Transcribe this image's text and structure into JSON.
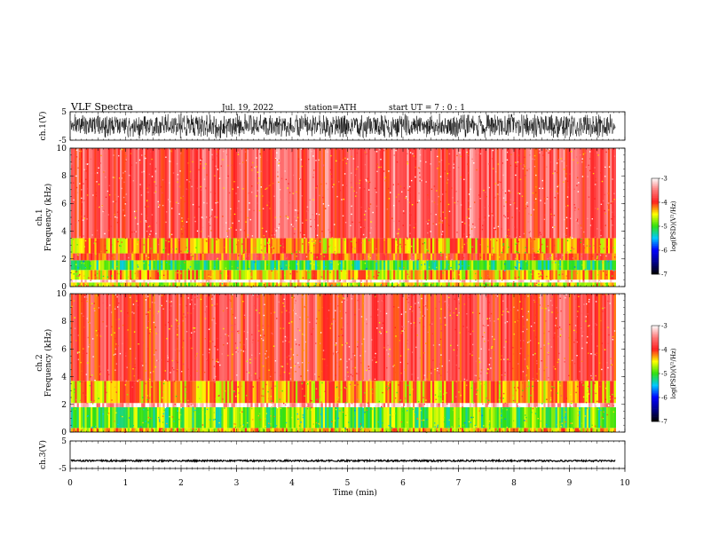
{
  "header": {
    "title": "VLF  Spectra",
    "date": "Jul.  19, 2022",
    "station": "station=ATH",
    "start_ut": "start  UT  =   7 : 0  : 1"
  },
  "chart_data": [
    {
      "type": "line",
      "name": "ch1-waveform",
      "ylabel": "ch.1(V)",
      "ylim": [
        -5,
        5
      ],
      "yticks": [
        "5",
        "-5"
      ],
      "xlim": [
        0,
        10
      ],
      "x_end": 9.83,
      "amplitude_v": 4.5
    },
    {
      "type": "heatmap",
      "name": "ch1-spectrogram",
      "ylabel_lines": [
        "ch.1",
        "Frequency  (kHz)"
      ],
      "ylim": [
        0,
        10
      ],
      "yticks": [
        "0",
        "2",
        "4",
        "6",
        "8",
        "10"
      ],
      "xlim": [
        0,
        10
      ],
      "x_end": 9.83,
      "colorbar": {
        "label": "log(PSD)(V²/Hz)",
        "range": [
          -7,
          -3
        ],
        "ticks": [
          "-3",
          "-4",
          "-5",
          "-6",
          "-7"
        ]
      },
      "bands": [
        {
          "f_lo": 0.0,
          "f_hi": 0.3,
          "level": -4.6
        },
        {
          "f_lo": 0.3,
          "f_hi": 0.5,
          "level": -3.0
        },
        {
          "f_lo": 0.5,
          "f_hi": 1.2,
          "level": -4.4
        },
        {
          "f_lo": 1.2,
          "f_hi": 1.9,
          "level": -5.0
        },
        {
          "f_lo": 1.9,
          "f_hi": 2.4,
          "level": -4.0
        },
        {
          "f_lo": 2.4,
          "f_hi": 3.5,
          "level": -4.3
        },
        {
          "f_lo": 3.5,
          "f_hi": 10.0,
          "level": -3.7
        }
      ]
    },
    {
      "type": "heatmap",
      "name": "ch2-spectrogram",
      "ylabel_lines": [
        "ch.2",
        "Frequency  (kHz)"
      ],
      "ylim": [
        0,
        10
      ],
      "yticks": [
        "0",
        "2",
        "4",
        "6",
        "8",
        "10"
      ],
      "xlim": [
        0,
        10
      ],
      "x_end": 9.83,
      "colorbar": {
        "label": "log(PSD)(V²/Hz)",
        "range": [
          -7,
          -3
        ],
        "ticks": [
          "-3",
          "-4",
          "-5",
          "-6",
          "-7"
        ]
      },
      "bands": [
        {
          "f_lo": 0.0,
          "f_hi": 0.3,
          "level": -4.4
        },
        {
          "f_lo": 0.3,
          "f_hi": 1.8,
          "level": -4.9
        },
        {
          "f_lo": 1.8,
          "f_hi": 2.1,
          "level": -3.2
        },
        {
          "f_lo": 2.1,
          "f_hi": 3.7,
          "level": -4.3
        },
        {
          "f_lo": 3.7,
          "f_hi": 10.0,
          "level": -3.8
        }
      ]
    },
    {
      "type": "line",
      "name": "ch3-waveform",
      "ylabel": "ch.3(V)",
      "ylim": [
        -5,
        5
      ],
      "yticks": [
        "5",
        "-5"
      ],
      "xlim": [
        0,
        10
      ],
      "x_end": 9.83,
      "offset_v": -2.2,
      "amplitude_v": 0.3
    }
  ],
  "x_axis": {
    "xlabel": "Time  (min)",
    "xlim": [
      0,
      10
    ],
    "ticks": [
      "0",
      "1",
      "2",
      "3",
      "4",
      "5",
      "6",
      "7",
      "8",
      "9",
      "10"
    ]
  },
  "colors": {
    "waveform": "#000000",
    "high": "#ff2020",
    "mid": "#ffff00",
    "low": "#30e010",
    "bg": "#ffffff"
  }
}
